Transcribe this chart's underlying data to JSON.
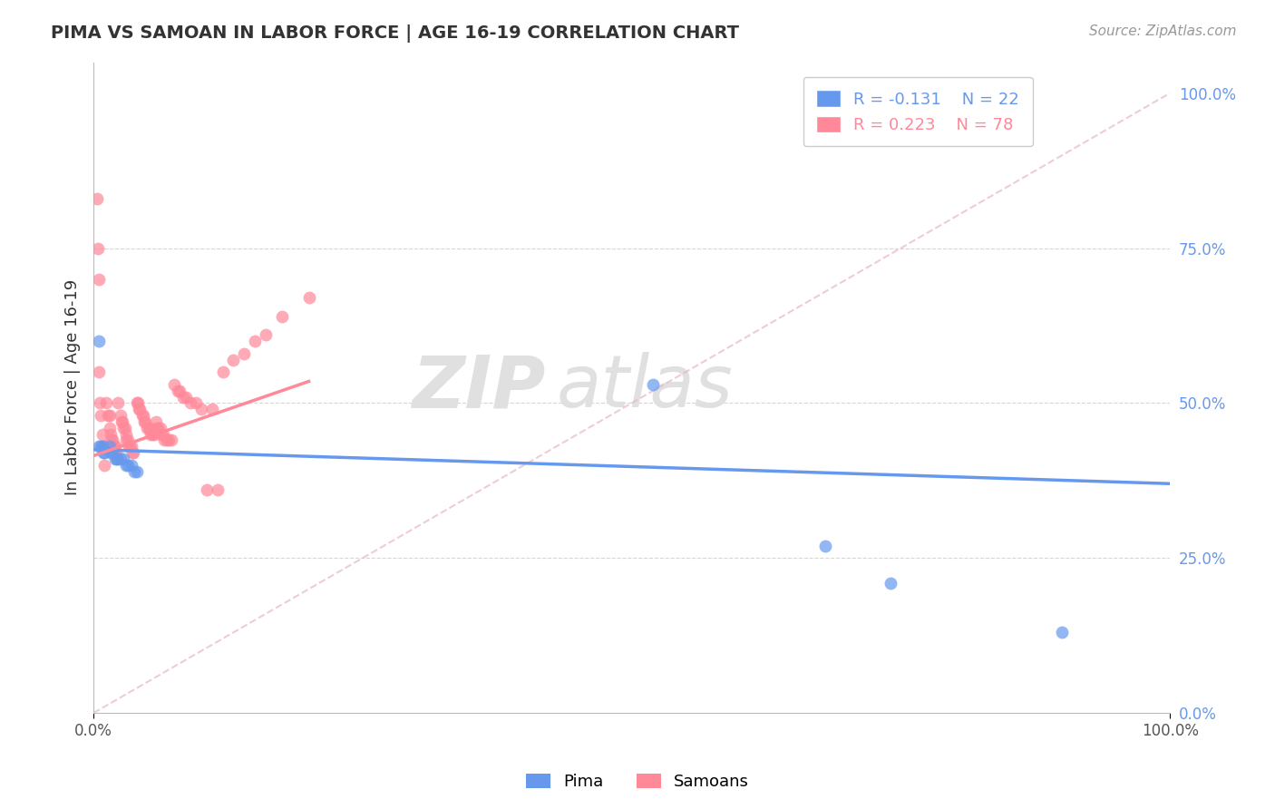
{
  "title": "PIMA VS SAMOAN IN LABOR FORCE | AGE 16-19 CORRELATION CHART",
  "source_text": "Source: ZipAtlas.com",
  "ylabel": "In Labor Force | Age 16-19",
  "xlim": [
    0.0,
    1.0
  ],
  "ylim": [
    0.0,
    1.05
  ],
  "x_ticks": [
    0.0,
    1.0
  ],
  "x_tick_labels": [
    "0.0%",
    "100.0%"
  ],
  "y_ticks_right": [
    0.0,
    0.25,
    0.5,
    0.75,
    1.0
  ],
  "y_tick_labels_right": [
    "0.0%",
    "25.0%",
    "50.0%",
    "75.0%",
    "100.0%"
  ],
  "pima_color": "#6699EE",
  "samoan_color": "#FF8899",
  "pima_R": -0.131,
  "pima_N": 22,
  "samoan_R": 0.223,
  "samoan_N": 78,
  "pima_scatter_x": [
    0.005,
    0.005,
    0.007,
    0.008,
    0.009,
    0.01,
    0.015,
    0.016,
    0.018,
    0.02,
    0.022,
    0.025,
    0.028,
    0.03,
    0.032,
    0.035,
    0.038,
    0.04,
    0.52,
    0.68,
    0.74,
    0.9
  ],
  "pima_scatter_y": [
    0.6,
    0.43,
    0.43,
    0.43,
    0.42,
    0.42,
    0.43,
    0.42,
    0.42,
    0.41,
    0.41,
    0.41,
    0.41,
    0.4,
    0.4,
    0.4,
    0.39,
    0.39,
    0.53,
    0.27,
    0.21,
    0.13
  ],
  "samoan_scatter_x": [
    0.003,
    0.004,
    0.005,
    0.005,
    0.006,
    0.007,
    0.008,
    0.009,
    0.01,
    0.01,
    0.012,
    0.013,
    0.015,
    0.015,
    0.016,
    0.017,
    0.018,
    0.019,
    0.02,
    0.02,
    0.021,
    0.022,
    0.023,
    0.025,
    0.026,
    0.027,
    0.028,
    0.029,
    0.03,
    0.03,
    0.032,
    0.033,
    0.034,
    0.035,
    0.036,
    0.037,
    0.04,
    0.041,
    0.042,
    0.043,
    0.045,
    0.046,
    0.047,
    0.048,
    0.05,
    0.051,
    0.052,
    0.053,
    0.055,
    0.056,
    0.058,
    0.059,
    0.06,
    0.062,
    0.063,
    0.065,
    0.066,
    0.068,
    0.07,
    0.072,
    0.075,
    0.078,
    0.08,
    0.083,
    0.086,
    0.09,
    0.095,
    0.1,
    0.105,
    0.11,
    0.115,
    0.12,
    0.13,
    0.14,
    0.15,
    0.16,
    0.175,
    0.2
  ],
  "samoan_scatter_y": [
    0.83,
    0.75,
    0.7,
    0.55,
    0.5,
    0.48,
    0.45,
    0.43,
    0.43,
    0.4,
    0.5,
    0.48,
    0.48,
    0.46,
    0.45,
    0.44,
    0.44,
    0.43,
    0.43,
    0.42,
    0.42,
    0.41,
    0.5,
    0.48,
    0.47,
    0.47,
    0.46,
    0.46,
    0.45,
    0.44,
    0.44,
    0.43,
    0.43,
    0.43,
    0.42,
    0.42,
    0.5,
    0.5,
    0.49,
    0.49,
    0.48,
    0.48,
    0.47,
    0.47,
    0.46,
    0.46,
    0.46,
    0.45,
    0.45,
    0.45,
    0.47,
    0.46,
    0.46,
    0.46,
    0.45,
    0.45,
    0.44,
    0.44,
    0.44,
    0.44,
    0.53,
    0.52,
    0.52,
    0.51,
    0.51,
    0.5,
    0.5,
    0.49,
    0.36,
    0.49,
    0.36,
    0.55,
    0.57,
    0.58,
    0.6,
    0.61,
    0.64,
    0.67
  ],
  "background_color": "#FFFFFF",
  "grid_color": "#CCCCCC",
  "watermark": "ZIPatlas",
  "watermark_color": "#DDDDDD",
  "pima_trend_x": [
    0.0,
    1.0
  ],
  "pima_trend_y": [
    0.425,
    0.37
  ],
  "samoan_trend_x": [
    0.0,
    0.2
  ],
  "samoan_trend_y": [
    0.415,
    0.535
  ]
}
